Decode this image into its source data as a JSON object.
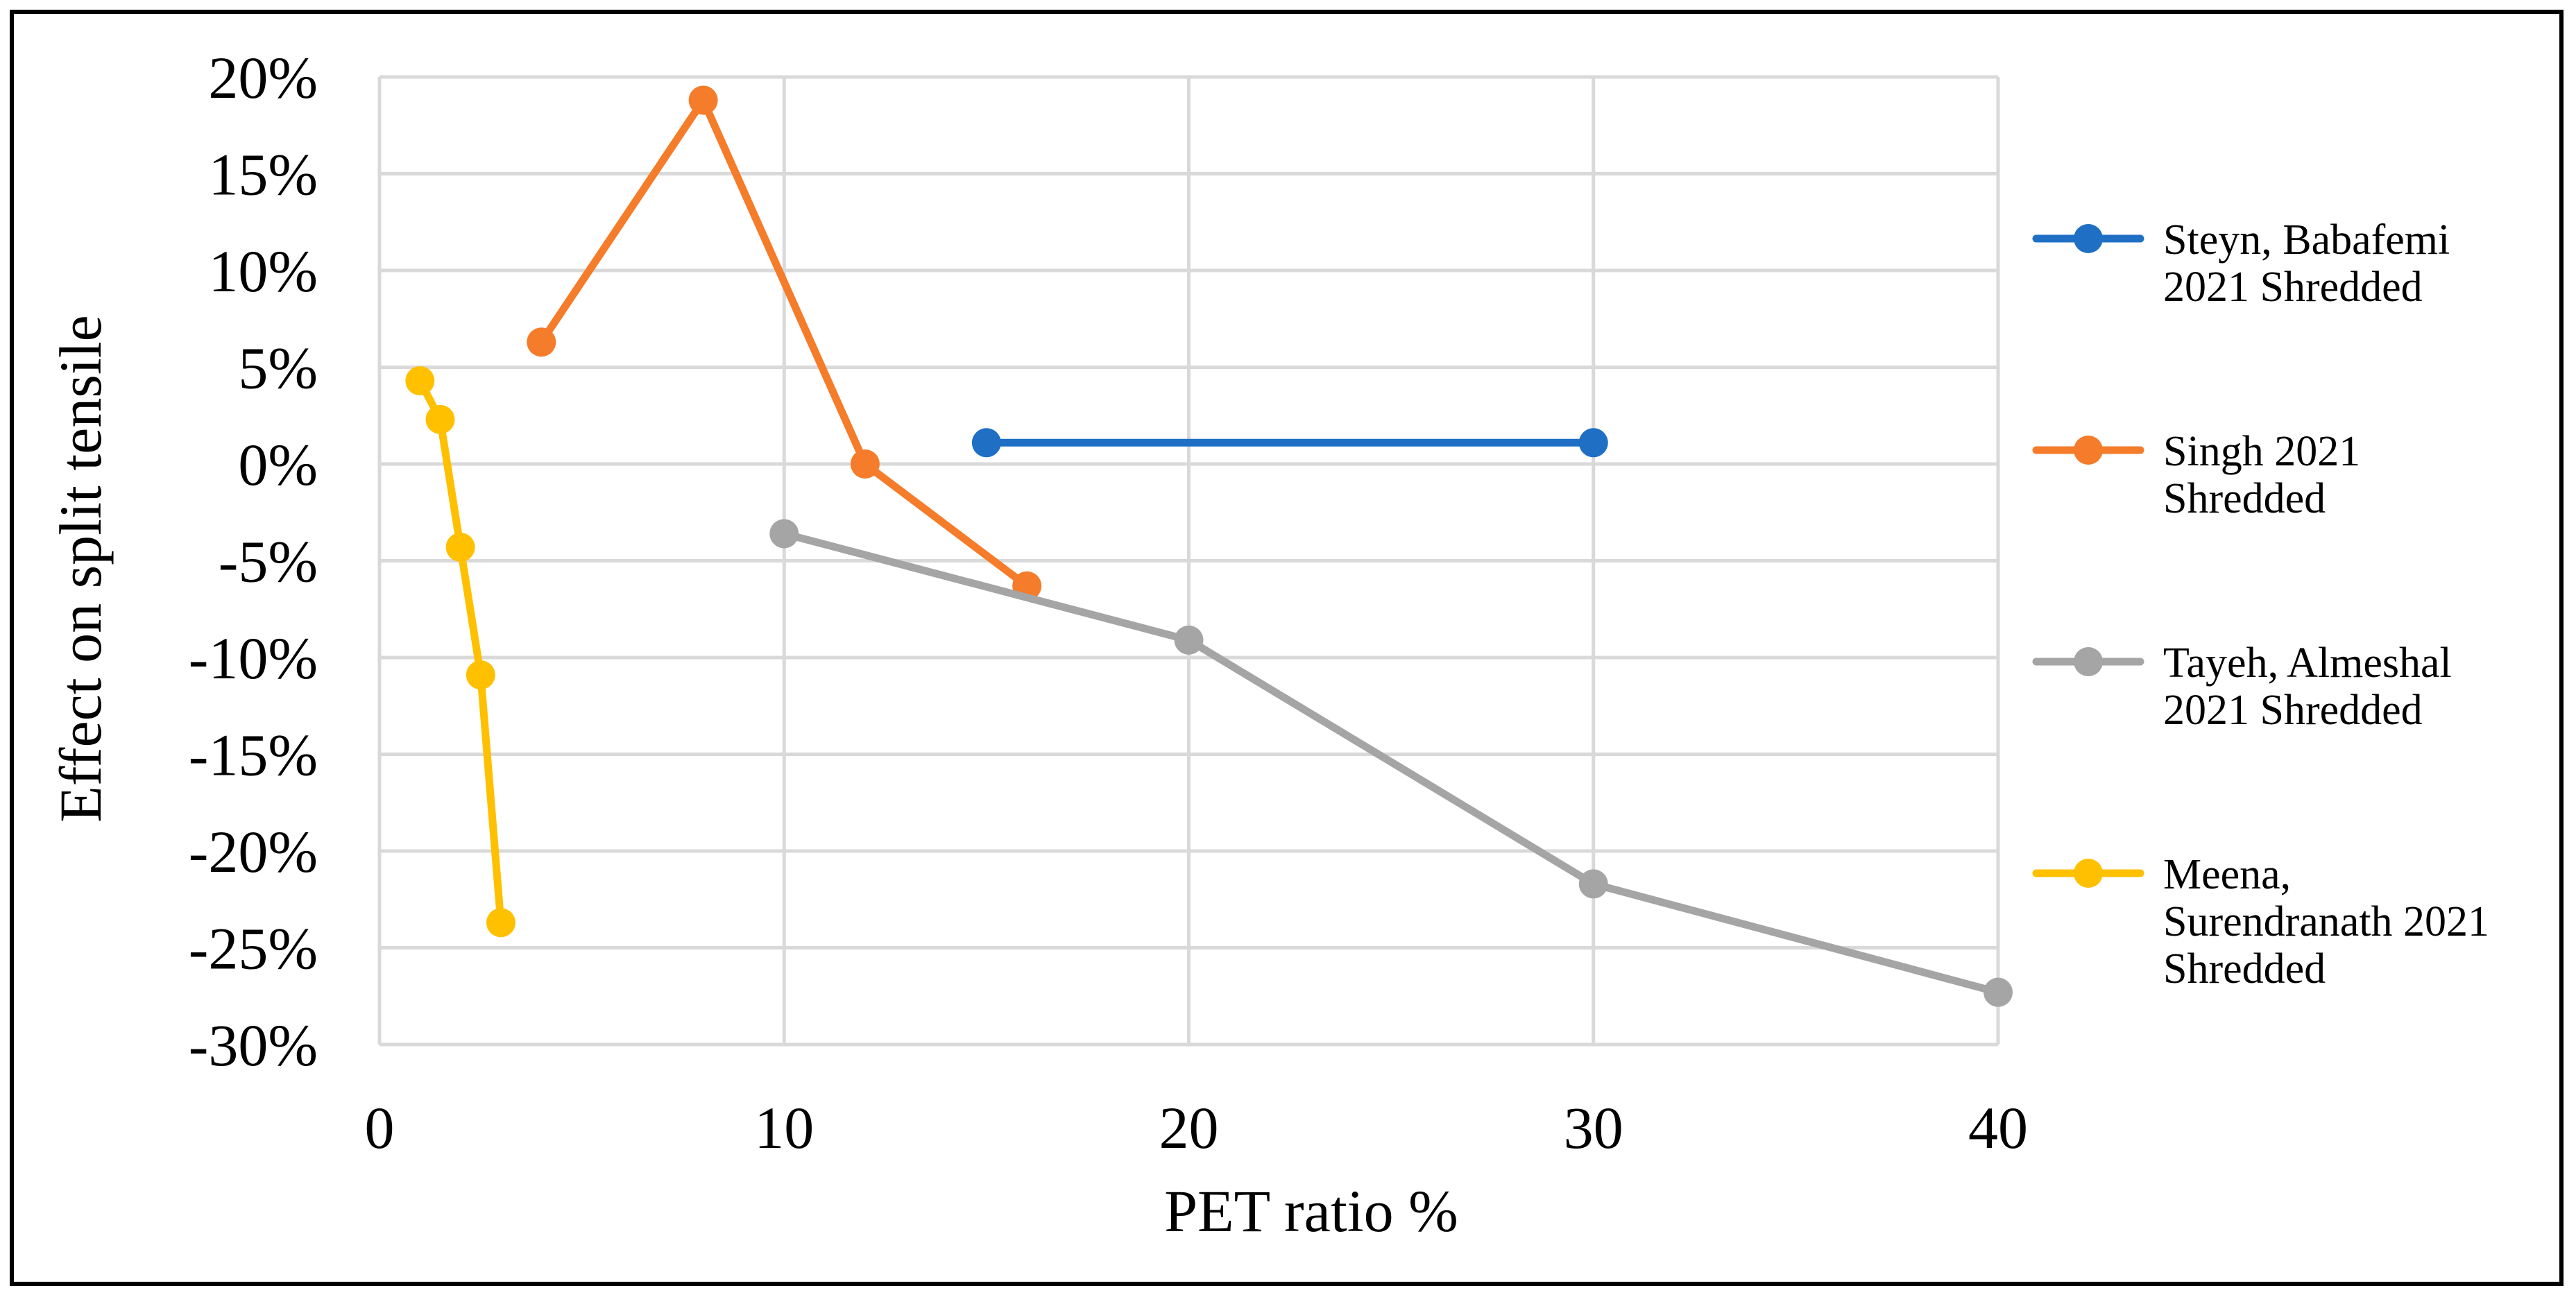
{
  "chart_data": {
    "type": "line",
    "title": "",
    "xlabel": "PET ratio %",
    "ylabel": "Effect on split tensile",
    "xlim": [
      0,
      40
    ],
    "ylim": [
      -30,
      20
    ],
    "x_ticks": [
      0,
      10,
      20,
      30,
      40
    ],
    "x_tick_labels": [
      "0",
      "10",
      "20",
      "30",
      "40"
    ],
    "y_ticks": [
      20,
      15,
      10,
      5,
      0,
      -5,
      -10,
      -15,
      -20,
      -25,
      -30
    ],
    "y_tick_labels": [
      "20%",
      "15%",
      "10%",
      "5%",
      "0%",
      "-5%",
      "-10%",
      "-15%",
      "-20%",
      "-25%",
      "-30%"
    ],
    "grid": true,
    "legend_position": "right",
    "series": [
      {
        "name": "Steyn, Babafemi 2021 Shredded",
        "legend_lines": [
          "Steyn, Babafemi",
          "2021 Shredded"
        ],
        "color": "#1F6FC5",
        "x": [
          15,
          30
        ],
        "y": [
          1.1,
          1.1
        ]
      },
      {
        "name": "Singh 2021 Shredded",
        "legend_lines": [
          "Singh 2021",
          "Shredded"
        ],
        "color": "#F47C2A",
        "x": [
          4,
          8,
          12,
          16
        ],
        "y": [
          6.3,
          18.8,
          0.0,
          -6.3
        ]
      },
      {
        "name": "Tayeh, Almeshal 2021 Shredded",
        "legend_lines": [
          "Tayeh, Almeshal",
          "2021 Shredded"
        ],
        "color": "#A5A5A5",
        "x": [
          10,
          20,
          30,
          40
        ],
        "y": [
          -3.6,
          -9.1,
          -21.7,
          -27.3
        ]
      },
      {
        "name": "Meena, Surendranath 2021 Shredded",
        "legend_lines": [
          "Meena,",
          "Surendranath 2021",
          "Shredded"
        ],
        "color": "#FFC000",
        "x": [
          1,
          1.5,
          2,
          2.5,
          3
        ],
        "y": [
          4.3,
          2.3,
          -4.3,
          -10.9,
          -23.7
        ]
      }
    ]
  }
}
